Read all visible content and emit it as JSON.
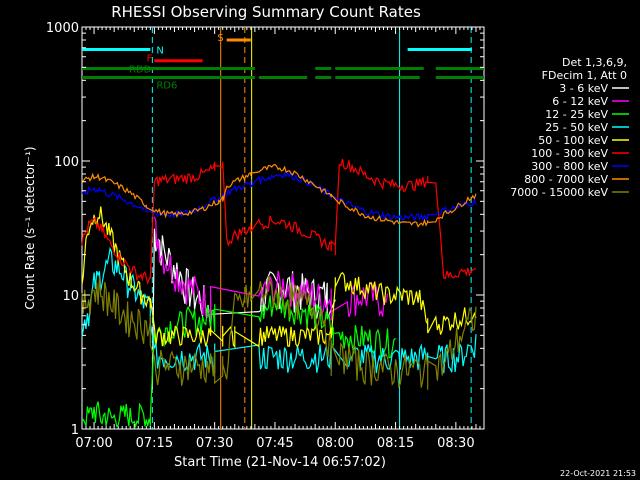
{
  "chart_data": {
    "type": "line",
    "title": "RHESSI Observing Summary Count Rates",
    "xlabel": "Start Time (21-Nov-14 06:57:02)",
    "ylabel": "Count Rate (s⁻¹ detector⁻¹)",
    "x_unit": "minutes after 06:57:02",
    "xlim": [
      0,
      100
    ],
    "ylim": [
      1,
      1000
    ],
    "yscale": "log",
    "xticks": [
      {
        "v": 3,
        "label": "07:00"
      },
      {
        "v": 18,
        "label": "07:15"
      },
      {
        "v": 33,
        "label": "07:30"
      },
      {
        "v": 48,
        "label": "07:45"
      },
      {
        "v": 63,
        "label": "08:00"
      },
      {
        "v": 78,
        "label": "08:15"
      },
      {
        "v": 93,
        "label": "08:30"
      }
    ],
    "yticks": [
      {
        "v": 1,
        "label": "1"
      },
      {
        "v": 10,
        "label": "10"
      },
      {
        "v": 100,
        "label": "100"
      },
      {
        "v": 1000,
        "label": "1000"
      }
    ],
    "legend_header": [
      "Det 1,3,6,9,",
      "FDecim 1, Att 0"
    ],
    "series": [
      {
        "name": "3 - 6 keV",
        "color": "#ffffff",
        "x": [
          17.5,
          18,
          19,
          20,
          22,
          24,
          26,
          28,
          30,
          31,
          32,
          44,
          46,
          50,
          54,
          58,
          61,
          63
        ],
        "y": [
          2.0,
          30,
          27,
          22,
          18,
          15,
          12,
          10,
          9,
          8.5,
          7.5,
          9,
          11,
          12,
          11,
          10,
          10,
          9
        ]
      },
      {
        "name": "6 - 12 keV",
        "color": "#ff00ff",
        "x": [
          18,
          19,
          20,
          22,
          24,
          26,
          28,
          30,
          32,
          44,
          46,
          50,
          54,
          58,
          62,
          66,
          70,
          74,
          76
        ],
        "y": [
          32,
          26,
          20,
          17,
          14,
          12,
          11,
          9.5,
          9,
          9.5,
          11,
          12,
          11,
          10,
          9,
          9.5,
          10,
          9.5,
          8
        ]
      },
      {
        "name": "12 - 25 keV",
        "color": "#00ff00",
        "x": [
          0,
          1,
          2,
          3,
          4,
          5,
          6,
          7,
          8,
          9,
          10,
          11,
          12,
          13,
          14,
          15,
          16,
          17,
          18,
          20,
          22,
          24,
          26,
          28,
          30,
          32,
          33,
          44,
          46,
          48,
          50,
          52,
          54,
          56,
          58,
          60,
          61.5,
          62.5,
          64,
          66,
          68,
          70,
          72,
          74,
          76,
          78
        ],
        "y": [
          1.3,
          1.2,
          1.25,
          1.4,
          1.3,
          1.2,
          1.3,
          1.2,
          1.2,
          1.3,
          1.2,
          1.3,
          1.2,
          1.3,
          1.2,
          1.3,
          1.2,
          1.2,
          5,
          5.5,
          6,
          6,
          6.5,
          6.5,
          6.5,
          7,
          7,
          7,
          8,
          9,
          8.5,
          8,
          8,
          7.5,
          7,
          6.5,
          6,
          5,
          5,
          5,
          4.8,
          4.8,
          4.7,
          4.6,
          4.5,
          4.5
        ]
      },
      {
        "name": "25 - 50 keV",
        "color": "#00ffff",
        "x": [
          0,
          1,
          2,
          3,
          4,
          5,
          6,
          7,
          8,
          9,
          10,
          11,
          12,
          13,
          14,
          15,
          16,
          17,
          18,
          22,
          26,
          30,
          33,
          44,
          48,
          52,
          56,
          60,
          62,
          66,
          70,
          74,
          78,
          82,
          86,
          88,
          90,
          92,
          94,
          96,
          98
        ],
        "y": [
          6,
          7,
          8,
          12,
          13,
          15,
          16,
          18,
          17,
          16,
          15,
          13,
          12,
          11,
          10,
          9,
          8.5,
          8,
          3.5,
          3.5,
          3.5,
          3.5,
          3.5,
          3.5,
          3.5,
          3.5,
          3.5,
          3.5,
          3.5,
          3.5,
          3.5,
          3.4,
          3.4,
          3.4,
          3.5,
          3.5,
          3.4,
          3.5,
          3.5,
          4,
          4.5
        ]
      },
      {
        "name": "50 - 100 keV",
        "color": "#ffff00",
        "x": [
          0,
          1,
          2,
          3,
          4,
          5,
          6,
          7,
          8,
          9,
          10,
          11,
          12,
          13,
          14,
          15,
          16,
          17,
          18,
          22,
          26,
          30,
          32,
          35,
          37,
          38,
          44,
          46,
          48,
          50,
          52,
          54,
          56,
          58,
          60,
          62,
          63,
          64,
          68,
          72,
          76,
          80,
          84,
          86,
          88,
          92,
          96,
          98
        ],
        "y": [
          12,
          25,
          35,
          38,
          42,
          38,
          32,
          28,
          24,
          20,
          17,
          15,
          13,
          12,
          11,
          10,
          9.5,
          9,
          5,
          5,
          5,
          5,
          5,
          5,
          5,
          5,
          5,
          5,
          5,
          5,
          5,
          5,
          5,
          5,
          5,
          5,
          14,
          13,
          12,
          11,
          10,
          10,
          9.5,
          6,
          6,
          6.5,
          7,
          8
        ]
      },
      {
        "name": "100 - 300 keV",
        "color": "#ff0000",
        "x": [
          0,
          1,
          2,
          3,
          4,
          5,
          6,
          7,
          8,
          9,
          10,
          11,
          12,
          13,
          14,
          15,
          16,
          17,
          18,
          19,
          20,
          22,
          24,
          26,
          28,
          30,
          32,
          33,
          35,
          36,
          38,
          40,
          42,
          44,
          46,
          48,
          50,
          52,
          54,
          56,
          58,
          60,
          62,
          63,
          64,
          66,
          68,
          70,
          72,
          74,
          76,
          78,
          80,
          82,
          84,
          86,
          88,
          90,
          92,
          94,
          96,
          98
        ],
        "y": [
          25,
          30,
          34,
          35,
          33,
          30,
          27,
          24,
          22,
          20,
          18,
          17,
          16,
          15,
          14,
          14,
          13.5,
          13,
          70,
          72,
          72,
          73,
          74,
          75,
          77,
          80,
          85,
          90,
          95,
          25,
          28,
          30,
          32,
          34,
          35,
          36,
          35,
          33,
          31,
          29,
          27,
          25,
          23,
          22,
          100,
          95,
          88,
          80,
          75,
          70,
          68,
          66,
          66,
          66,
          68,
          72,
          75,
          14,
          14,
          15,
          15,
          16
        ]
      },
      {
        "name": "300 - 800 keV",
        "color": "#0000ff",
        "x": [
          0,
          1,
          2,
          3,
          4,
          5,
          6,
          8,
          10,
          12,
          14,
          16,
          18,
          20,
          22,
          24,
          26,
          28,
          30,
          32,
          34,
          35,
          36,
          38,
          40,
          42,
          44,
          46,
          48,
          50,
          52,
          54,
          56,
          58,
          60,
          62,
          64,
          66,
          68,
          70,
          72,
          74,
          76,
          78,
          80,
          82,
          84,
          86,
          88,
          90,
          92,
          94,
          96,
          98
        ],
        "y": [
          55,
          58,
          61,
          62,
          62,
          60,
          58,
          55,
          52,
          49,
          46,
          43,
          41,
          40,
          40,
          40,
          41,
          43,
          46,
          50,
          53,
          55,
          58,
          62,
          65,
          68,
          72,
          75,
          78,
          80,
          78,
          74,
          70,
          65,
          60,
          55,
          51,
          48,
          45,
          43,
          41,
          40,
          39,
          38,
          38,
          38,
          38,
          39,
          41,
          43,
          44,
          46,
          48,
          50
        ]
      },
      {
        "name": "800 - 7000 keV",
        "color": "#ff8c00",
        "x": [
          0,
          1,
          2,
          3,
          4,
          5,
          6,
          8,
          10,
          12,
          14,
          16,
          18,
          20,
          22,
          24,
          26,
          28,
          30,
          32,
          34,
          35,
          36,
          38,
          40,
          42,
          44,
          46,
          48,
          50,
          52,
          54,
          56,
          58,
          60,
          62,
          64,
          66,
          68,
          70,
          72,
          74,
          76,
          78,
          80,
          82,
          84,
          86,
          88,
          90,
          92,
          94,
          96,
          98
        ],
        "y": [
          70,
          73,
          75,
          76,
          76,
          75,
          72,
          68,
          63,
          58,
          52,
          47,
          43,
          41,
          40,
          40,
          41,
          42,
          44,
          47,
          50,
          52,
          65,
          70,
          75,
          80,
          85,
          88,
          90,
          88,
          84,
          78,
          72,
          66,
          60,
          55,
          50,
          46,
          43,
          40,
          38,
          37,
          36,
          35,
          34,
          34,
          34,
          35,
          37,
          40,
          43,
          47,
          52,
          56
        ]
      },
      {
        "name": "7000 - 15000 keV",
        "color": "#808000",
        "x": [
          0,
          1,
          2,
          3,
          4,
          5,
          6,
          7,
          8,
          9,
          10,
          11,
          12,
          13,
          14,
          15,
          16,
          17,
          18,
          20,
          22,
          24,
          26,
          28,
          30,
          32,
          33,
          35,
          36,
          38,
          40,
          42,
          44,
          46,
          48,
          50,
          52,
          54,
          56,
          58,
          60,
          62,
          64,
          66,
          68,
          70,
          72,
          74,
          76,
          78,
          80,
          82,
          84,
          86,
          88,
          90,
          92,
          94,
          96,
          98
        ],
        "y": [
          8,
          9,
          10,
          11,
          11,
          10.5,
          10,
          9,
          8.5,
          8,
          7.5,
          7,
          6.8,
          6.6,
          6.4,
          6.2,
          6,
          5.8,
          3,
          3,
          3,
          3,
          3,
          3,
          3,
          3,
          3,
          3,
          3,
          8,
          9,
          10,
          10.5,
          11,
          10.5,
          10,
          9.5,
          9,
          8.5,
          8,
          7.5,
          3.5,
          3.5,
          3.5,
          3.2,
          3,
          3,
          3,
          2.8,
          2.8,
          2.8,
          2.8,
          2.8,
          2.8,
          3,
          3,
          4,
          5,
          6,
          7
        ]
      }
    ],
    "flags": [
      {
        "name": "N",
        "color": "#00ffff",
        "value": 680,
        "segments": [
          [
            0,
            17
          ],
          [
            81,
            97
          ]
        ]
      },
      {
        "name": "F",
        "color": "#ff0000",
        "value": 560,
        "segments": [
          [
            18,
            30
          ]
        ]
      },
      {
        "name": "S",
        "color": "#ff8c00",
        "value": 800,
        "segments": [
          [
            36,
            42
          ]
        ]
      },
      {
        "name": "RDD",
        "color": "#008000",
        "value": 490,
        "segments": [
          [
            0,
            43
          ],
          [
            58,
            62
          ],
          [
            63,
            85
          ],
          [
            88,
            100
          ]
        ]
      },
      {
        "name": "RD6",
        "color": "#008000",
        "value": 420,
        "segments": [
          [
            0,
            43
          ],
          [
            44,
            56
          ],
          [
            58,
            62
          ],
          [
            63,
            84
          ],
          [
            88,
            100
          ]
        ]
      }
    ],
    "vlines": [
      {
        "x": 17.5,
        "color": "#00ffff",
        "style": "dashed"
      },
      {
        "x": 34.5,
        "color": "#ff8c00",
        "style": "solid"
      },
      {
        "x": 40.5,
        "color": "#ff8c00",
        "style": "dashed"
      },
      {
        "x": 42.2,
        "color": "#ffff00",
        "style": "solid"
      },
      {
        "x": 79.0,
        "color": "#00ffff",
        "style": "solid"
      },
      {
        "x": 96.8,
        "color": "#00ffff",
        "style": "dashed"
      }
    ],
    "timestamp": "22-Oct-2021 21:53"
  }
}
